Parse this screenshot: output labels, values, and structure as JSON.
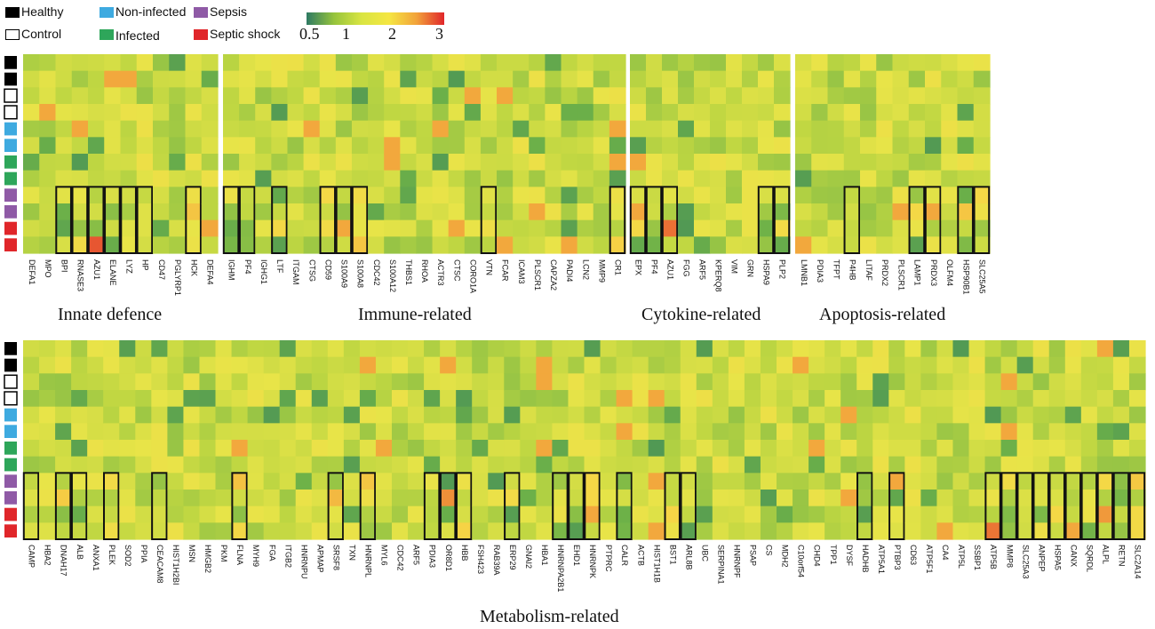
{
  "legend": {
    "items": [
      {
        "label": "Healthy",
        "color": "#000000",
        "outline": false
      },
      {
        "label": "Control",
        "color": "#ffffff",
        "outline": true
      },
      {
        "label": "Non-infected",
        "color": "#3eaae0",
        "outline": false
      },
      {
        "label": "Infected",
        "color": "#2ea65a",
        "outline": false
      },
      {
        "label": "Sepsis",
        "color": "#8f5aa6",
        "outline": false
      },
      {
        "label": "Septic shock",
        "color": "#e0262a",
        "outline": false
      }
    ],
    "colorbar_ticks": [
      "0.5",
      "1",
      "2",
      "3"
    ],
    "colorbar_colors": [
      "#2e7a63",
      "#96c43c",
      "#d9e542",
      "#f5e642",
      "#f2a23a",
      "#e0262a"
    ]
  },
  "chart_data": {
    "type": "heatmap",
    "sample_groups": [
      "Healthy",
      "Healthy",
      "Control",
      "Control",
      "Non-infected",
      "Non-infected",
      "Infected",
      "Infected",
      "Sepsis",
      "Sepsis",
      "Septic shock",
      "Septic shock"
    ],
    "color_scale": {
      "min": 0.5,
      "max": 3,
      "ticks": [
        0.5,
        1,
        2,
        3
      ]
    },
    "panels": [
      {
        "title": "Innate defence",
        "genes": [
          "DEFA1",
          "MPO",
          "BPI",
          "RNASE3",
          "AZU1",
          "ELANE",
          "LYZ",
          "HP",
          "CD47",
          "PGLYRP1",
          "HCK",
          "DEFA4"
        ],
        "boxed": [
          "BPI",
          "RNASE3",
          "AZU1",
          "ELANE",
          "LYZ",
          "HP",
          "HCK"
        ]
      },
      {
        "title": "Immune-related",
        "genes": [
          "IGHM",
          "PF4",
          "IGHG1",
          "LTF",
          "ITGAM",
          "CTSG",
          "CD59",
          "S100A9",
          "S100A8",
          "CDC42",
          "S100A12",
          "THBS1",
          "RHOA",
          "ACTR3",
          "CTSC",
          "CORO1A",
          "VTN",
          "FCAR",
          "ICAM3",
          "PLSCR1",
          "CAPZA2",
          "PADI4",
          "LCN2",
          "MMP9",
          "CR1"
        ],
        "boxed": [
          "IGHM",
          "PF4",
          "LTF",
          "CD59",
          "S100A9",
          "S100A8",
          "VTN",
          "CR1"
        ]
      },
      {
        "title": "Cytokine-related",
        "genes": [
          "EPX",
          "PF4",
          "AZU1",
          "FGG",
          "ARF5",
          "KPERQ8",
          "VIM",
          "GRN",
          "HSPA9",
          "PLP2"
        ],
        "boxed": [
          "EPX",
          "PF4",
          "AZU1",
          "HSPA9",
          "PLP2"
        ]
      },
      {
        "title": "Apoptosis-related",
        "genes": [
          "LMNB1",
          "PDIA3",
          "TFPT",
          "P4HB",
          "LITAF",
          "PRDX2",
          "PLSCR1",
          "LAMP1",
          "PRDX3",
          "OLFM4",
          "HSP90B1",
          "SLC25A5"
        ],
        "boxed": [
          "P4HB",
          "LAMP1",
          "PRDX3",
          "HSP90B1",
          "SLC25A5"
        ]
      },
      {
        "title": "Metabolism-related",
        "genes": [
          "CAMP",
          "HBA2",
          "DNAH17",
          "ALB",
          "ANXA1",
          "PLEK",
          "SOD2",
          "PPIA",
          "CEACAM8",
          "HIST1H2BI",
          "MSN",
          "HMGB2",
          "PKM",
          "FLNA",
          "MYH9",
          "FGA",
          "ITGB2",
          "HNRNPU",
          "APMAP",
          "SRSF8",
          "TXN",
          "HNRNPL",
          "MYL6",
          "CDC42",
          "ARF5",
          "PDIA3",
          "OR8D1",
          "HBB",
          "FSH423",
          "RAB39A",
          "ERP29",
          "GNAI2",
          "HBA1",
          "HNRNPA2B1",
          "EHD1",
          "HNRNPK",
          "PTPRC",
          "CALR",
          "ACTB",
          "HIST1H1B",
          "BST1",
          "ARL8B",
          "UBC",
          "SERPINA1",
          "HNRNPF",
          "PSAP",
          "CS",
          "MDH2",
          "C10orf54",
          "CHD4",
          "TPP1",
          "DYSF",
          "HADHB",
          "ATP5A1",
          "PTBP3",
          "CD63",
          "ATP5F1",
          "CA4",
          "ATP5L",
          "SSBP1",
          "ATP5B",
          "MMP8",
          "SLC25A3",
          "ANPEP",
          "HSPA5",
          "CANX",
          "SQRDL",
          "ALPL",
          "RETN",
          "SLC2A14"
        ],
        "boxed": [
          "CAMP",
          "DNAH17",
          "ALB",
          "PLEK",
          "CEACAM8",
          "FLNA",
          "SRSF8",
          "HNRNPL",
          "PDIA3",
          "OR8D1",
          "HBB",
          "ERP29",
          "HNRNPA2B1",
          "EHD1",
          "HNRNPK",
          "CALR",
          "BST1",
          "ARL8B",
          "HADHB",
          "PTBP3",
          "ATP5B",
          "MMP8",
          "SLC25A3",
          "ANPEP",
          "HSPA5",
          "CANX",
          "SQRDL",
          "ALPL",
          "RETN",
          "SLC2A14"
        ]
      }
    ]
  }
}
